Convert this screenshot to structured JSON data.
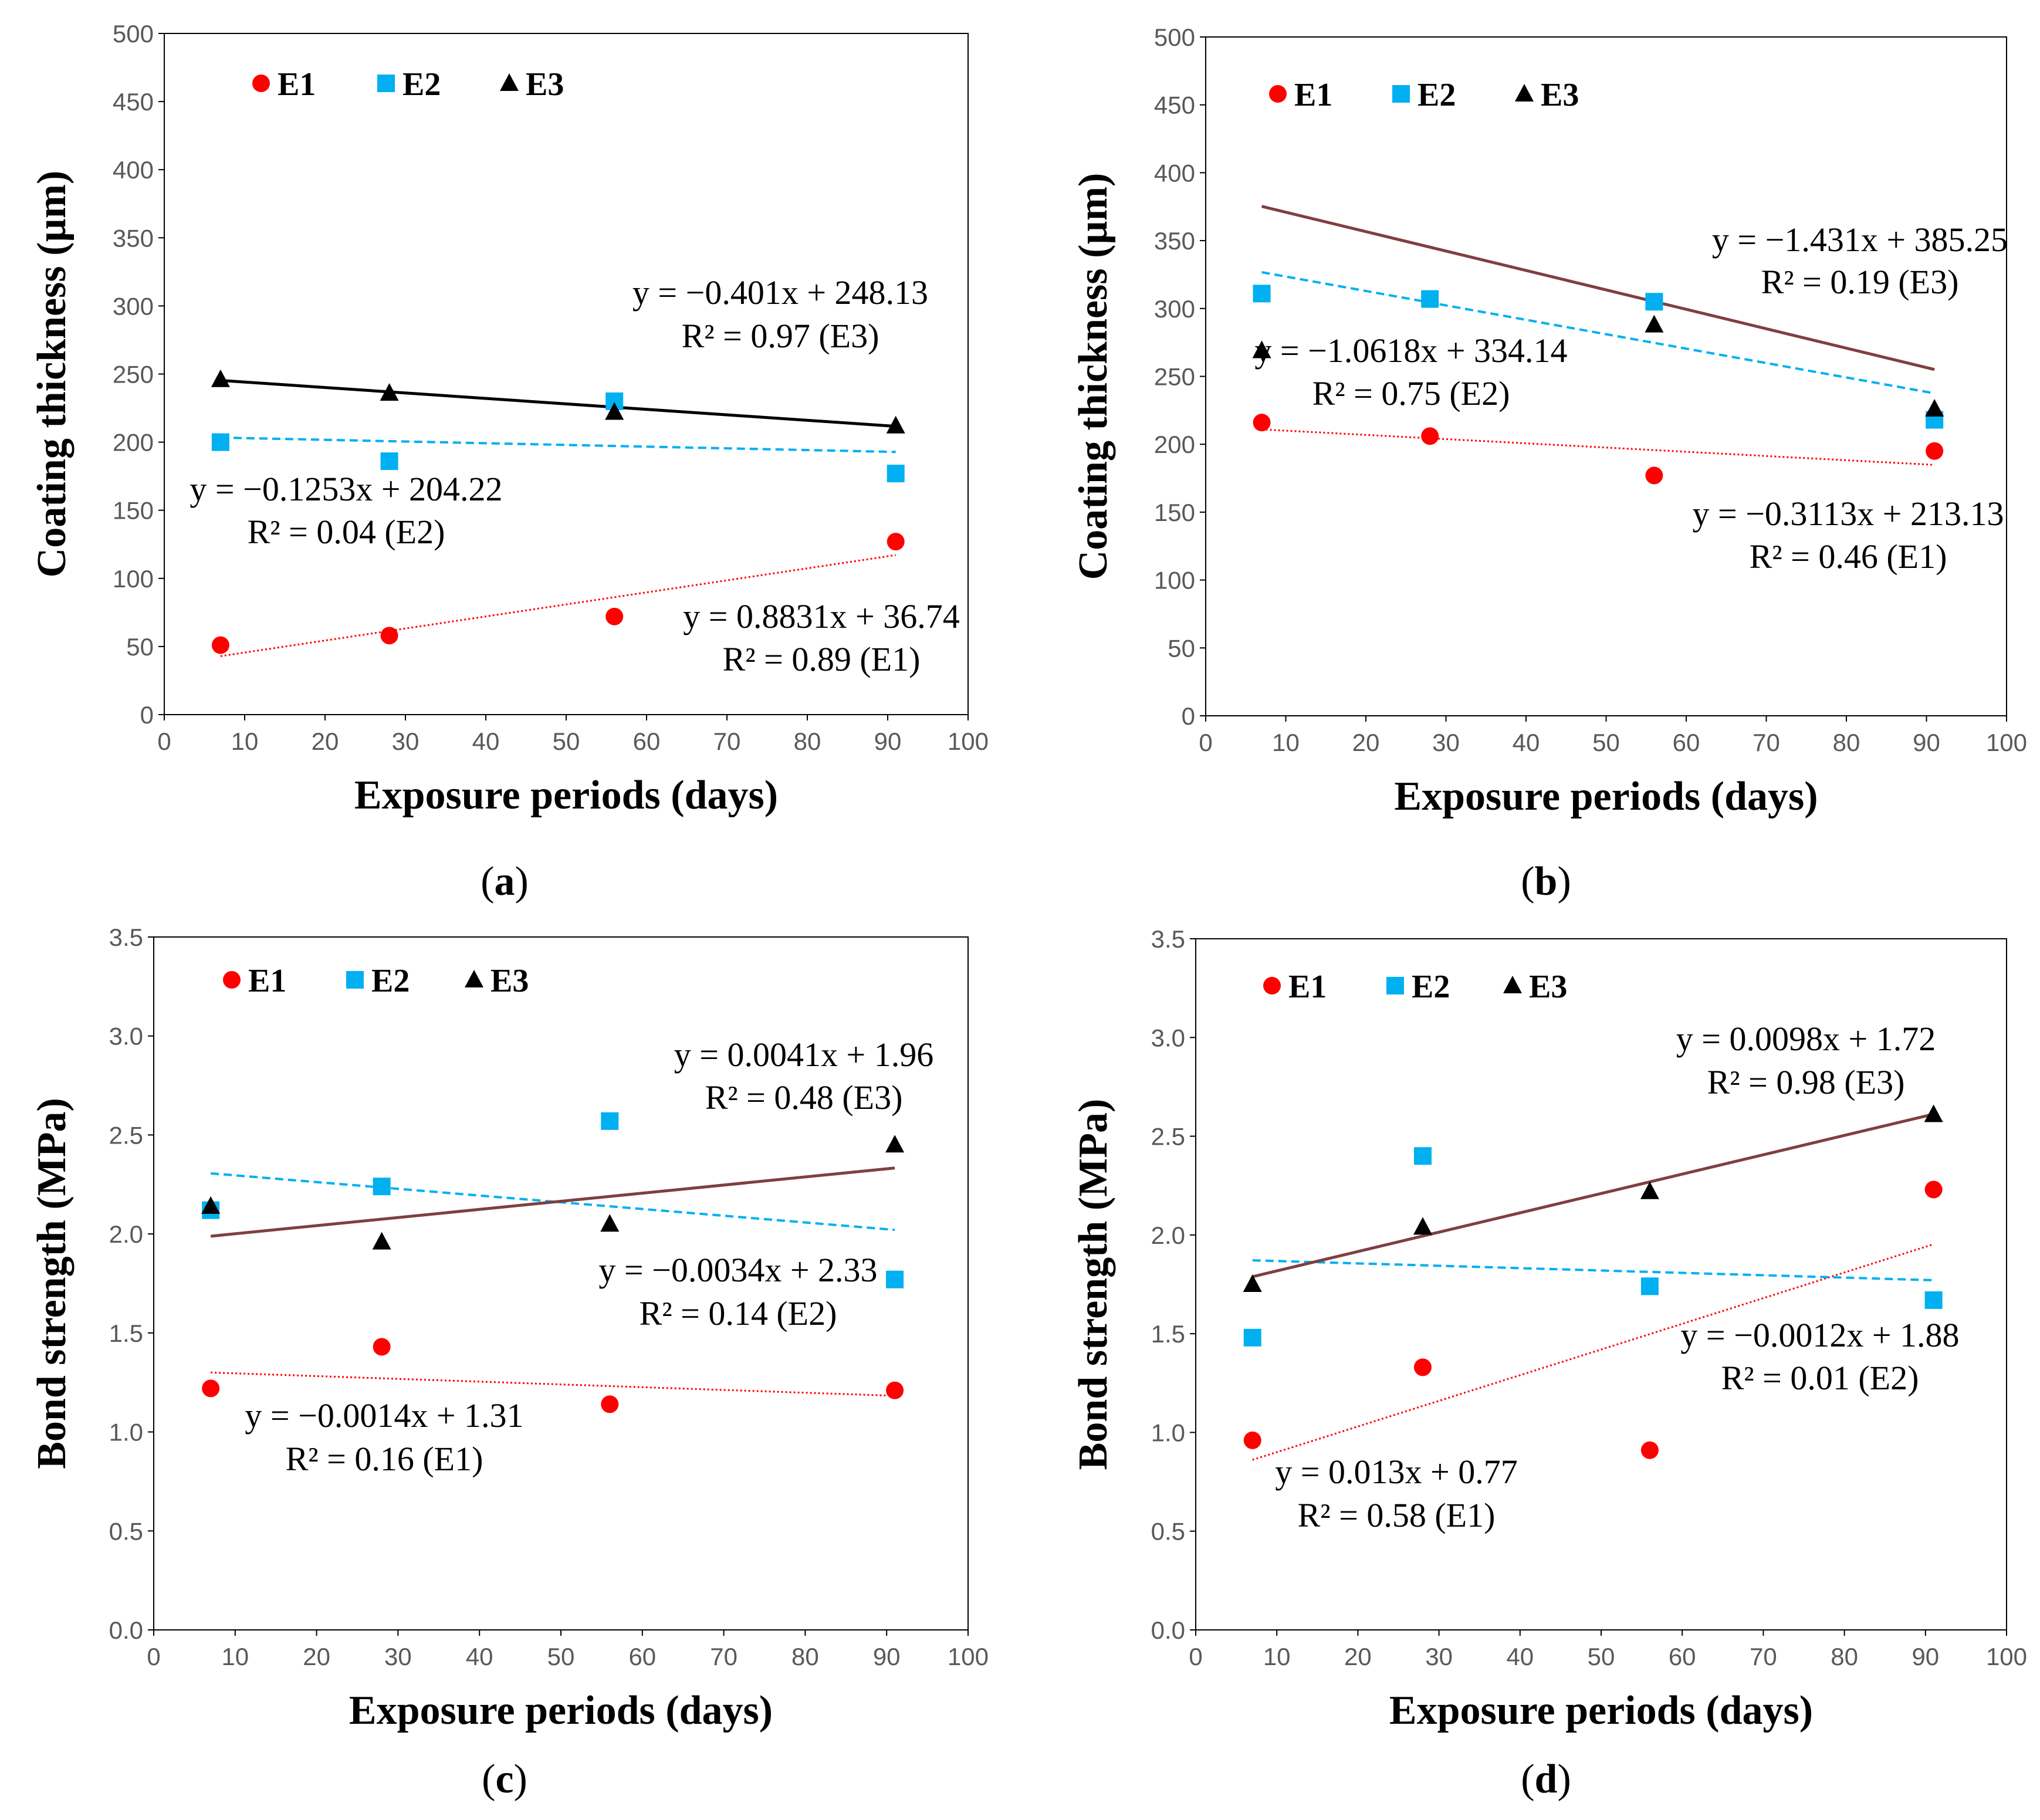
{
  "chart_data": [
    {
      "type": "scatter",
      "panel": "a",
      "xlabel": "Exposure periods (days)",
      "ylabel": "Coating thickness (µm)",
      "xlim": [
        0,
        100
      ],
      "ylim": [
        0,
        500
      ],
      "xticks": [
        0,
        10,
        20,
        30,
        40,
        50,
        60,
        70,
        80,
        90,
        100
      ],
      "yticks": [
        0,
        50,
        100,
        150,
        200,
        250,
        300,
        350,
        400,
        450,
        500
      ],
      "ytick_labels": [
        "0",
        "50",
        "100",
        "150",
        "200",
        "250",
        "300",
        "350",
        "400",
        "450",
        "500"
      ],
      "x": [
        7,
        28,
        56,
        91
      ],
      "series": [
        {
          "name": "E1",
          "values": [
            51,
            58,
            72,
            127
          ],
          "slope": 0.8831,
          "intercept": 36.74,
          "equation": "y = 0.8831x + 36.74",
          "r2": "R² = 0.89 (E1)"
        },
        {
          "name": "E2",
          "values": [
            200,
            186,
            230,
            177
          ],
          "slope": -0.1253,
          "intercept": 204.22,
          "equation": "y = −0.1253x + 204.22",
          "r2": "R² = 0.04 (E2)"
        },
        {
          "name": "E3",
          "values": [
            246,
            236,
            222,
            212
          ],
          "slope": -0.401,
          "intercept": 248.13,
          "equation": "y = −0.401x + 248.13",
          "r2": "R² = 0.97 (E3)"
        }
      ],
      "legend": [
        "E1",
        "E2",
        "E3"
      ],
      "legend_position": "top-left"
    },
    {
      "type": "scatter",
      "panel": "b",
      "xlabel": "Exposure periods (days)",
      "ylabel": "Coating thickness (µm)",
      "xlim": [
        0,
        100
      ],
      "ylim": [
        0,
        500
      ],
      "xticks": [
        0,
        10,
        20,
        30,
        40,
        50,
        60,
        70,
        80,
        90,
        100
      ],
      "yticks": [
        0,
        50,
        100,
        150,
        200,
        250,
        300,
        350,
        400,
        450,
        500
      ],
      "ytick_labels": [
        "0",
        "50",
        "100",
        "150",
        "200",
        "250",
        "300",
        "350",
        "400",
        "450",
        "500"
      ],
      "x": [
        7,
        28,
        56,
        91
      ],
      "series": [
        {
          "name": "E1",
          "values": [
            216,
            206,
            177,
            195
          ],
          "slope": -0.3113,
          "intercept": 213.13,
          "equation": "y = −0.3113x + 213.13",
          "r2": "R² = 0.46 (E1)"
        },
        {
          "name": "E2",
          "values": [
            311,
            307,
            305,
            218
          ],
          "slope": -1.0618,
          "intercept": 334.14,
          "equation": "y = −1.0618x + 334.14",
          "r2": "R² = 0.75 (E2)"
        },
        {
          "name": "E3",
          "values": [
            269,
            null,
            288,
            226
          ],
          "slope": -1.431,
          "intercept": 385.25,
          "equation": "y = −1.431x + 385.25",
          "r2": "R² = 0.19 (E3)"
        }
      ],
      "legend": [
        "E1",
        "E2",
        "E3"
      ],
      "legend_position": "top-left"
    },
    {
      "type": "scatter",
      "panel": "c",
      "xlabel": "Exposure periods (days)",
      "ylabel": "Bond strength (MPa)",
      "xlim": [
        0,
        100
      ],
      "ylim": [
        0,
        3.5
      ],
      "xticks": [
        0,
        10,
        20,
        30,
        40,
        50,
        60,
        70,
        80,
        90,
        100
      ],
      "yticks": [
        0,
        0.5,
        1,
        1.5,
        2,
        2.5,
        3,
        3.5
      ],
      "ytick_labels": [
        "0.0",
        "0.5",
        "1.0",
        "1.5",
        "2.0",
        "2.5",
        "3.0",
        "3.5"
      ],
      "x": [
        7,
        28,
        56,
        91
      ],
      "series": [
        {
          "name": "E1",
          "values": [
            1.22,
            1.43,
            1.14,
            1.21
          ],
          "slope": -0.0014,
          "intercept": 1.31,
          "equation": "y = −0.0014x + 1.31",
          "r2": "R² = 0.16 (E1)"
        },
        {
          "name": "E2",
          "values": [
            2.12,
            2.24,
            2.57,
            1.77
          ],
          "slope": -0.0034,
          "intercept": 2.33,
          "equation": "y = −0.0034x + 2.33",
          "r2": "R² = 0.14 (E2)"
        },
        {
          "name": "E3",
          "values": [
            2.14,
            1.96,
            2.05,
            2.45
          ],
          "slope": 0.0041,
          "intercept": 1.96,
          "equation": "y = 0.0041x + 1.96",
          "r2": "R² = 0.48 (E3)"
        }
      ],
      "legend": [
        "E1",
        "E2",
        "E3"
      ],
      "legend_position": "top-left"
    },
    {
      "type": "scatter",
      "panel": "d",
      "xlabel": "Exposure periods (days)",
      "ylabel": "Bond strength (MPa)",
      "xlim": [
        0,
        100
      ],
      "ylim": [
        0,
        3.5
      ],
      "xticks": [
        0,
        10,
        20,
        30,
        40,
        50,
        60,
        70,
        80,
        90,
        100
      ],
      "yticks": [
        0,
        0.5,
        1,
        1.5,
        2,
        2.5,
        3,
        3.5
      ],
      "ytick_labels": [
        "0.0",
        "0.5",
        "1.0",
        "1.5",
        "2.0",
        "2.5",
        "3.0",
        "3.5"
      ],
      "x": [
        7,
        28,
        56,
        91
      ],
      "series": [
        {
          "name": "E1",
          "values": [
            0.96,
            1.33,
            0.91,
            2.23
          ],
          "slope": 0.013,
          "intercept": 0.77,
          "equation": "y = 0.013x + 0.77",
          "r2": "R² = 0.58 (E1)"
        },
        {
          "name": "E2",
          "values": [
            1.48,
            2.4,
            1.74,
            1.67
          ],
          "slope": -0.0012,
          "intercept": 1.88,
          "equation": "y = −0.0012x + 1.88",
          "r2": "R² = 0.01 (E2)"
        },
        {
          "name": "E3",
          "values": [
            1.75,
            2.04,
            2.22,
            2.61
          ],
          "slope": 0.0098,
          "intercept": 1.72,
          "equation": "y = 0.0098x + 1.72",
          "r2": "R² = 0.98 (E3)"
        }
      ],
      "legend": [
        "E1",
        "E2",
        "E3"
      ],
      "legend_position": "top-left"
    }
  ],
  "colors": {
    "E1": "#ff0000",
    "E2": "#00b0f0",
    "E3": "#000000",
    "E3_trend": "#7f3f3f"
  }
}
